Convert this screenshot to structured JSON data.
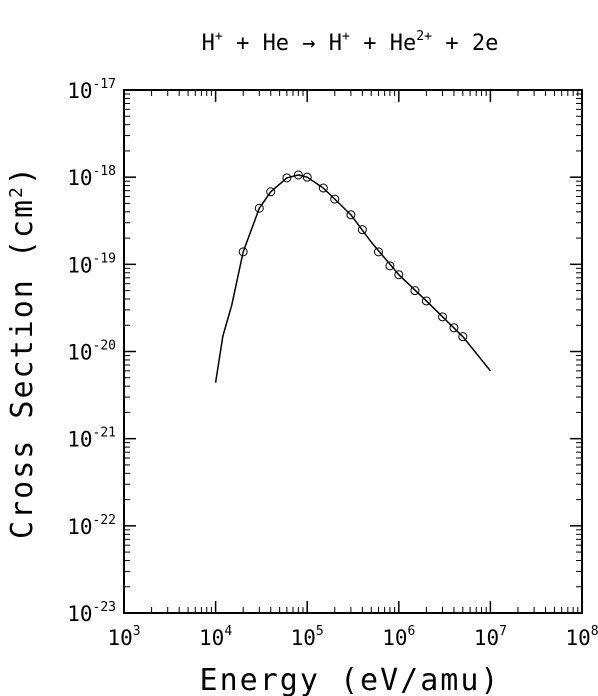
{
  "chart_data": {
    "type": "scatter",
    "title": [
      {
        "text": "H",
        "sup": "+"
      },
      {
        "text": " + He → H",
        "sup": "+"
      },
      {
        "text": " + He",
        "sup": "2+"
      },
      {
        "text": " + 2e"
      }
    ],
    "xlabel": [
      {
        "text": "Energy (eV/amu)"
      }
    ],
    "ylabel": [
      {
        "text": "Cross Section (cm",
        "sup": "2"
      },
      {
        "text": ")"
      }
    ],
    "xscale": "log",
    "yscale": "log",
    "minor_ticks": true,
    "color": "#000000",
    "xlim": [
      1000,
      100000000
    ],
    "ylim": [
      1e-23,
      1e-17
    ],
    "xticks": [
      {
        "value": 1000,
        "label": "10",
        "exponent": "3"
      },
      {
        "value": 10000,
        "label": "10",
        "exponent": "4"
      },
      {
        "value": 100000,
        "label": "10",
        "exponent": "5"
      },
      {
        "value": 1000000,
        "label": "10",
        "exponent": "6"
      },
      {
        "value": 10000000,
        "label": "10",
        "exponent": "7"
      },
      {
        "value": 100000000,
        "label": "10",
        "exponent": "8"
      }
    ],
    "yticks": [
      {
        "value": 1e-23,
        "label": "10",
        "exponent": "-23"
      },
      {
        "value": 1e-22,
        "label": "10",
        "exponent": "-22"
      },
      {
        "value": 1e-21,
        "label": "10",
        "exponent": "-21"
      },
      {
        "value": 1e-20,
        "label": "10",
        "exponent": "-20"
      },
      {
        "value": 1e-19,
        "label": "10",
        "exponent": "-19"
      },
      {
        "value": 1e-18,
        "label": "10",
        "exponent": "-18"
      },
      {
        "value": 1e-17,
        "label": "10",
        "exponent": "-17"
      }
    ],
    "series": [
      {
        "marker": "circle",
        "x": [
          20000,
          30000,
          40000,
          60000,
          80000,
          100000,
          150000,
          200000,
          300000,
          400000,
          600000,
          800000,
          1000000,
          1500000,
          2000000,
          3000000,
          4000000,
          5000000
        ],
        "values": [
          1.39e-19,
          4.4e-19,
          6.8e-19,
          9.8e-19,
          1.06e-18,
          1e-18,
          7.5e-19,
          5.6e-19,
          3.7e-19,
          2.5e-19,
          1.39e-19,
          9.6e-20,
          7.6e-20,
          5e-20,
          3.8e-20,
          2.5e-20,
          1.87e-20,
          1.48e-20
        ]
      },
      {
        "marker": "line",
        "x": [
          10000,
          12000,
          15000,
          20000,
          30000,
          40000,
          60000,
          80000,
          100000,
          150000,
          200000,
          300000,
          500000,
          1000000,
          2000000,
          5000000,
          10000000
        ],
        "values": [
          4.4e-21,
          1.5e-20,
          3.4e-20,
          1.39e-19,
          4.4e-19,
          6.8e-19,
          9.8e-19,
          1.06e-18,
          1e-18,
          7.5e-19,
          5.6e-19,
          3.7e-19,
          1.8e-19,
          7.6e-20,
          3.8e-20,
          1.48e-20,
          6e-21
        ]
      }
    ]
  }
}
